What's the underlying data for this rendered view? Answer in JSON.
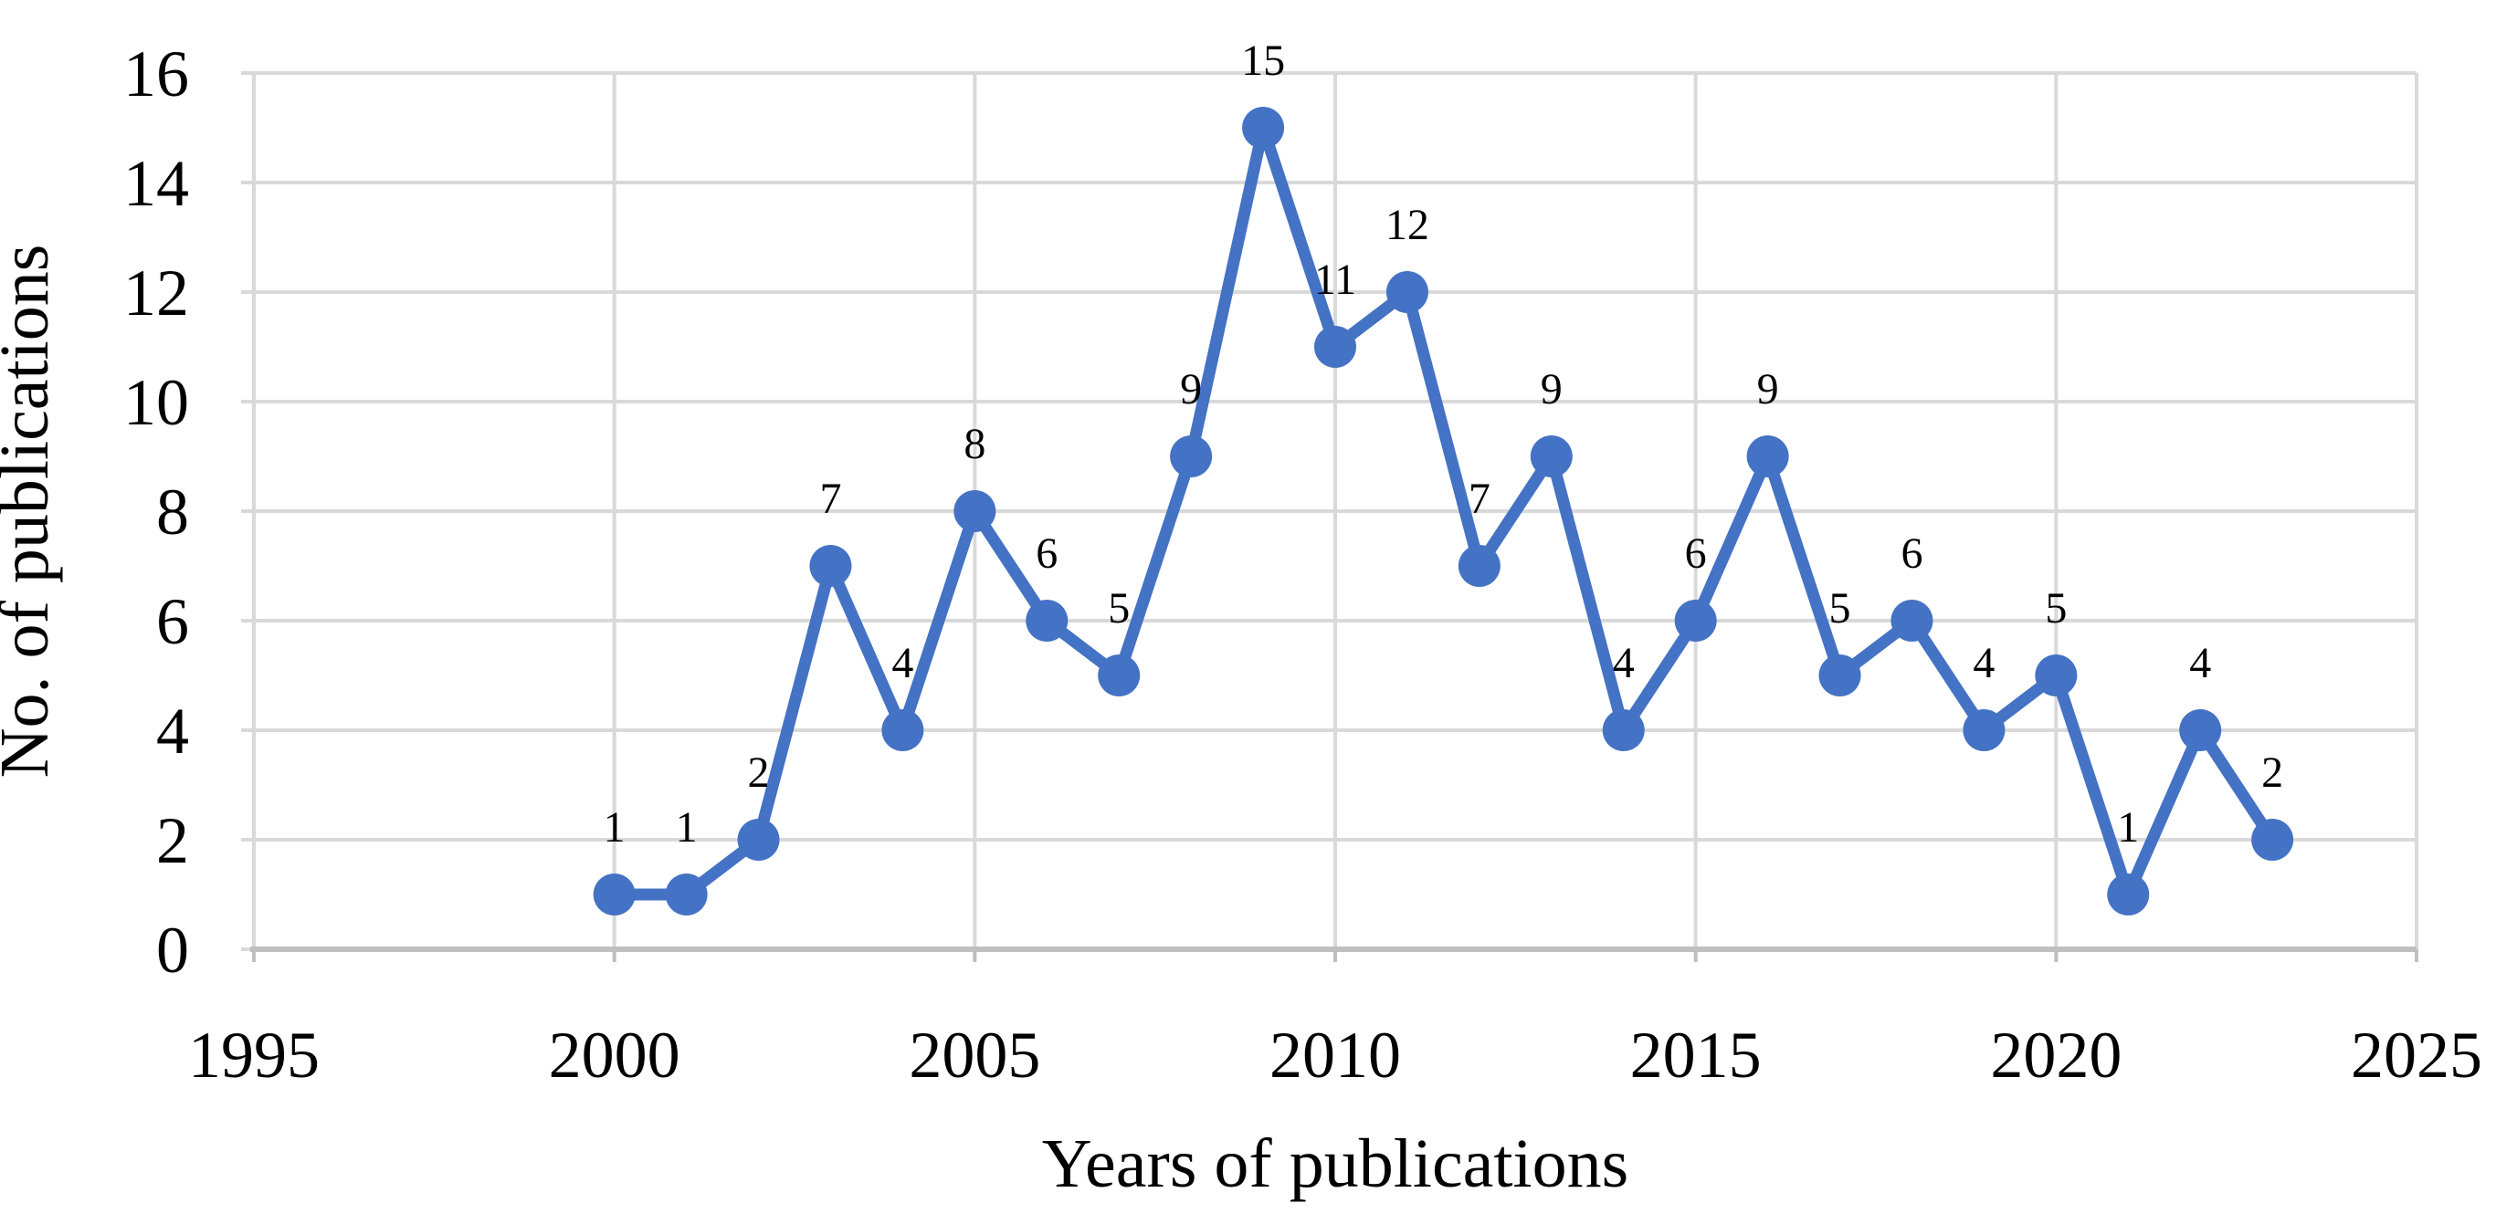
{
  "chart_data": {
    "type": "line",
    "title": "",
    "xlabel": "Years of publications",
    "ylabel": "No. of publications",
    "x": [
      2000,
      2001,
      2002,
      2003,
      2004,
      2005,
      2006,
      2007,
      2008,
      2009,
      2010,
      2011,
      2012,
      2013,
      2014,
      2015,
      2016,
      2017,
      2018,
      2019,
      2020,
      2021,
      2022,
      2023
    ],
    "values": [
      1,
      1,
      2,
      7,
      4,
      8,
      6,
      5,
      9,
      15,
      11,
      12,
      7,
      9,
      4,
      6,
      9,
      5,
      6,
      4,
      5,
      1,
      4,
      2
    ],
    "data_labels": [
      "1",
      "1",
      "2",
      "7",
      "4",
      "8",
      "6",
      "5",
      "9",
      "15",
      "11",
      "12",
      "7",
      "9",
      "4",
      "6",
      "9",
      "5",
      "6",
      "4",
      "5",
      "1",
      "4",
      "2"
    ],
    "xlim": [
      1995,
      2025
    ],
    "ylim": [
      0,
      16
    ],
    "xticks": [
      "1995",
      "2000",
      "2005",
      "2010",
      "2015",
      "2020",
      "2025"
    ],
    "yticks": [
      "0",
      "2",
      "4",
      "6",
      "8",
      "10",
      "12",
      "14",
      "16"
    ],
    "grid": true,
    "legend": false,
    "colors": {
      "series": "#4472C4",
      "gridline": "#D9D9D9",
      "axis_line": "#BFBFBF",
      "text": "#000000",
      "background": "#FFFFFF"
    }
  }
}
